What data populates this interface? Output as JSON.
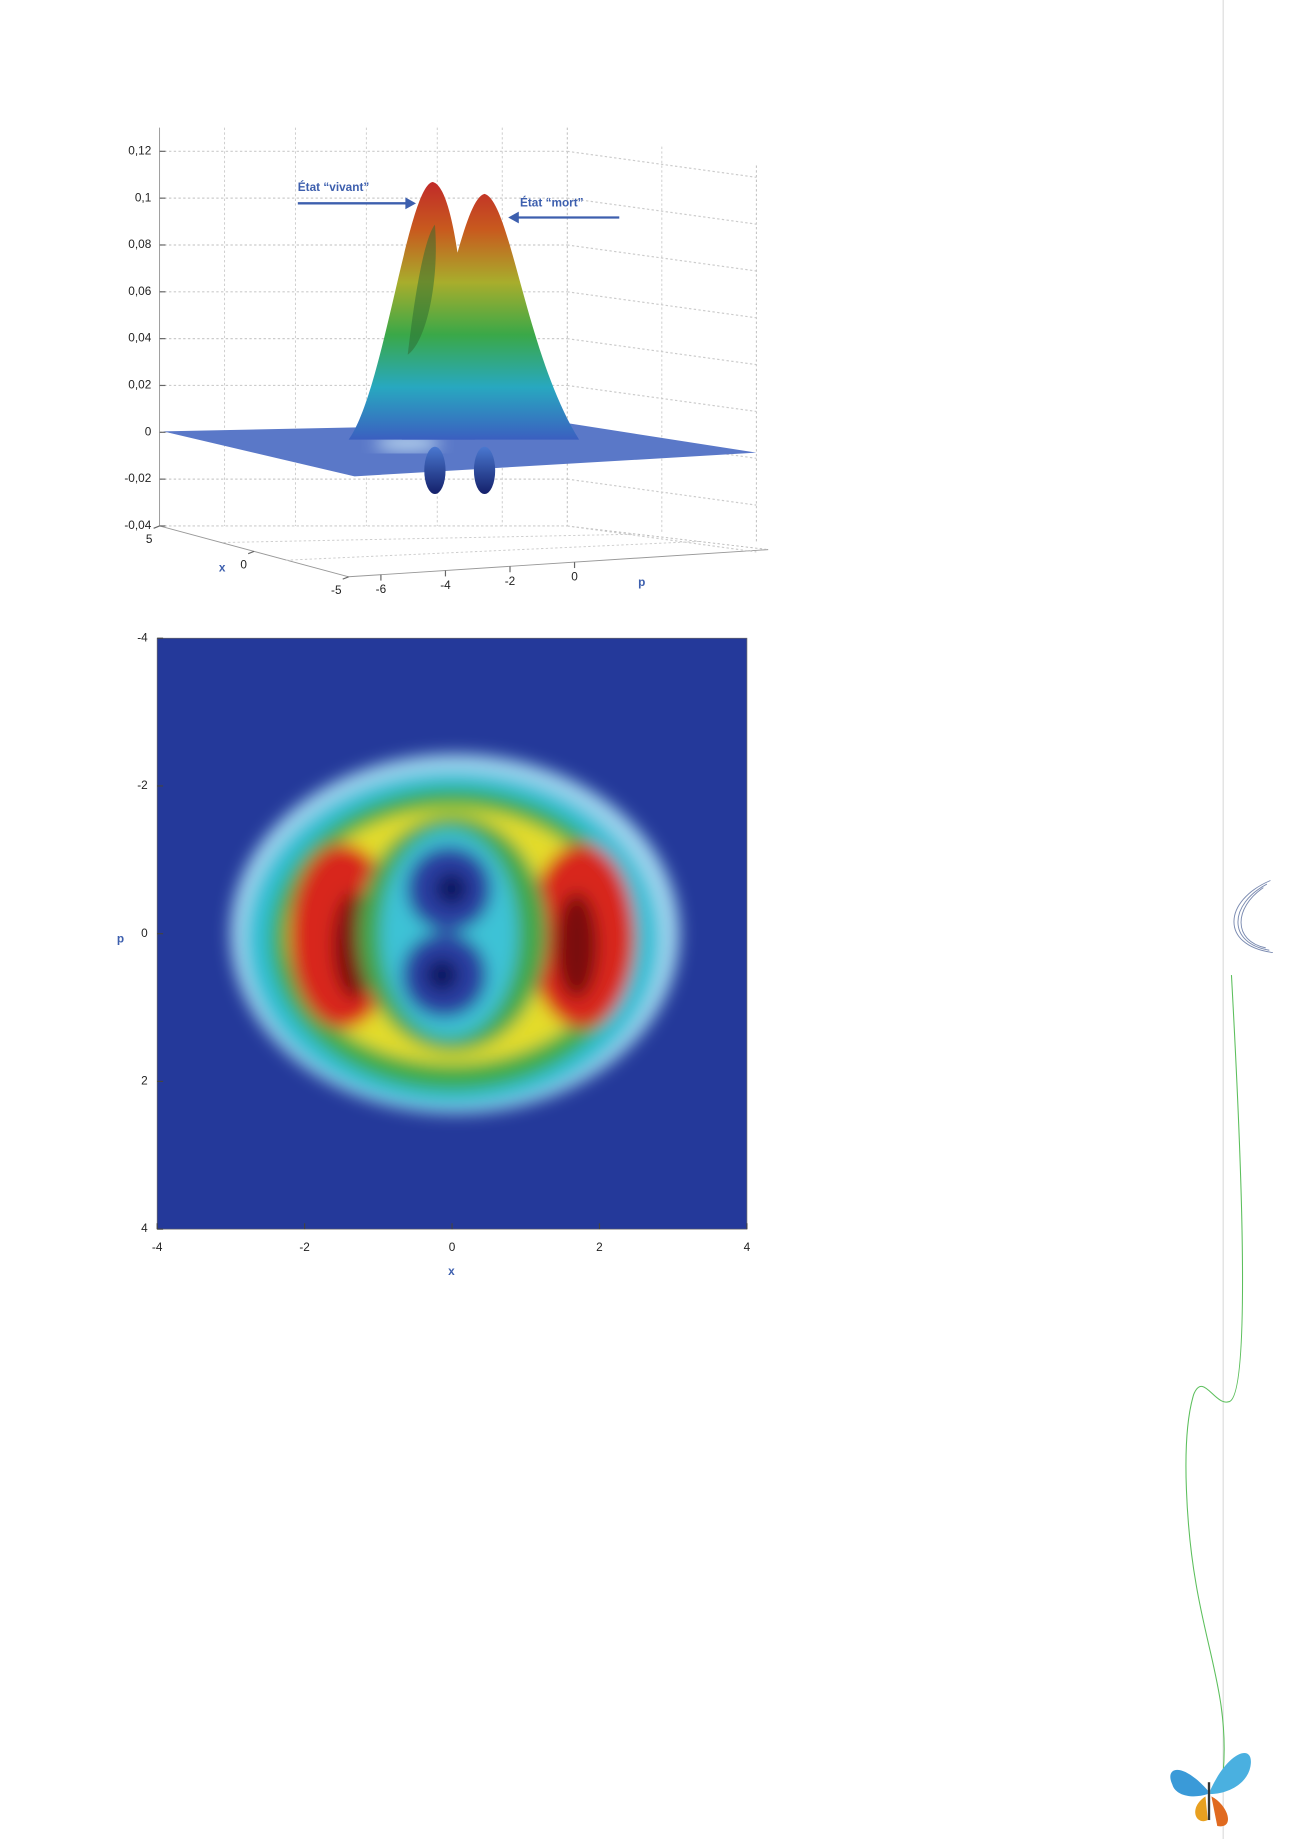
{
  "chart_data": [
    {
      "type": "surface3d",
      "annotations": [
        "État “vivant”",
        "État “mort”"
      ],
      "xlabel": "x",
      "ylabel": "p",
      "zlim": [
        -0.04,
        0.12
      ],
      "zticks": [
        {
          "value": 0.12,
          "label": "0,12"
        },
        {
          "value": 0.1,
          "label": "0,1"
        },
        {
          "value": 0.08,
          "label": "0,08"
        },
        {
          "value": 0.06,
          "label": "0,06"
        },
        {
          "value": 0.04,
          "label": "0,04"
        },
        {
          "value": 0.02,
          "label": "0,02"
        },
        0,
        {
          "value": -0.02,
          "label": "-0,02"
        },
        {
          "value": -0.04,
          "label": "-0,04"
        }
      ],
      "xlim": [
        -5,
        5
      ],
      "xticks": [
        5,
        0,
        -5
      ],
      "ylim": [
        -7,
        6
      ],
      "yticks": [
        -6,
        -4,
        -2,
        0
      ],
      "grid": true
    },
    {
      "type": "heatmap",
      "xlabel": "x",
      "ylabel": "p",
      "xlim": [
        -4,
        4
      ],
      "xticks": [
        -4,
        -2,
        0,
        2,
        4
      ],
      "ylim": [
        -4,
        4
      ],
      "yticks": [
        -4,
        -2,
        0,
        2,
        4
      ],
      "y_inverted": true
    }
  ]
}
